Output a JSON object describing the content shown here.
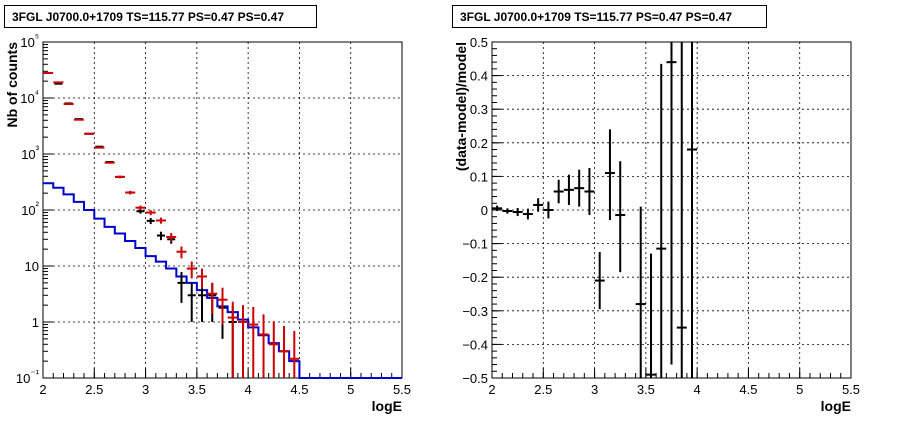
{
  "titles": {
    "left": "3FGL J0700.0+1709 TS=115.77 PS=0.47 PS=0.47",
    "right": "3FGL J0700.0+1709 TS=115.77 PS=0.47 PS=0.47"
  },
  "chart_data": [
    {
      "type": "scatter",
      "title": "3FGL J0700.0+1709 TS=115.77 PS=0.47 PS=0.47",
      "xlabel": "logE",
      "ylabel": "Nb of counts",
      "xlim": [
        2,
        5.5
      ],
      "ylim": [
        0.1,
        100000
      ],
      "yscale": "log",
      "grid": true,
      "x_ticks": [
        "2",
        "2.5",
        "3",
        "3.5",
        "4",
        "4.5",
        "5",
        "5.5"
      ],
      "y_ticks": [
        "10⁻¹",
        "1",
        "10",
        "10²",
        "10³",
        "10⁴",
        "10⁵"
      ],
      "bin_width": 0.1,
      "colors": {
        "data": "#000000",
        "model": "#cc0000",
        "background": "#0000cc"
      },
      "series": [
        {
          "x": [
            2.05,
            2.15,
            2.25,
            2.35,
            2.45,
            2.55,
            2.65,
            2.75,
            2.85,
            2.95,
            3.05,
            3.15,
            3.25,
            3.35,
            3.45,
            3.55,
            3.65,
            3.75,
            3.85,
            3.95
          ],
          "y": [
            28000,
            18000,
            8000,
            4200,
            2300,
            1350,
            720,
            390,
            205,
            95,
            64,
            35,
            30,
            5,
            3,
            3,
            3,
            1.8,
            1,
            1
          ],
          "err_low": [
            170,
            135,
            90,
            65,
            48,
            37,
            27,
            20,
            14,
            9,
            8,
            6,
            5,
            2.8,
            2,
            2,
            2,
            1.3,
            0.9,
            0.9
          ],
          "err_high": [
            170,
            135,
            90,
            65,
            48,
            37,
            27,
            20,
            14,
            9,
            8,
            6,
            5,
            2.8,
            2,
            2,
            2,
            1.3,
            0.9,
            0.9
          ]
        },
        {
          "x": [
            2.05,
            2.15,
            2.25,
            2.35,
            2.45,
            2.55,
            2.65,
            2.75,
            2.85,
            2.95,
            3.05,
            3.15,
            3.25,
            3.35,
            3.45,
            3.55,
            3.65,
            3.75,
            3.85,
            3.95,
            4.05,
            4.15,
            4.25,
            4.35,
            4.45
          ],
          "y": [
            28000,
            19000,
            7800,
            4100,
            2300,
            1300,
            700,
            390,
            205,
            110,
            90,
            65,
            33,
            18,
            9,
            6.5,
            3.2,
            2.5,
            1.2,
            1.0,
            0.9,
            0.6,
            0.4,
            0.3,
            0.22
          ],
          "err_low": [
            170,
            135,
            90,
            65,
            48,
            37,
            27,
            20,
            14,
            10,
            9.5,
            8,
            5.8,
            4.3,
            3,
            2.5,
            1.8,
            1.6,
            1.1,
            1.0,
            0.95,
            0.77,
            0.63,
            0.55,
            0.47
          ],
          "err_high": [
            170,
            135,
            90,
            65,
            48,
            37,
            27,
            20,
            14,
            10,
            9.5,
            8,
            5.8,
            4.3,
            3,
            2.5,
            1.8,
            1.6,
            1.1,
            1.0,
            0.95,
            0.77,
            0.63,
            0.55,
            0.47
          ]
        },
        {
          "bin_edges": [
            2.0,
            2.1,
            2.2,
            2.3,
            2.4,
            2.5,
            2.6,
            2.7,
            2.8,
            2.9,
            3.0,
            3.1,
            3.2,
            3.3,
            3.4,
            3.5,
            3.6,
            3.7,
            3.8,
            3.9,
            4.0,
            4.1,
            4.2,
            4.3,
            4.4,
            4.5,
            5.5
          ],
          "values": [
            300,
            250,
            190,
            140,
            100,
            70,
            50,
            38,
            28,
            21,
            15,
            12,
            9,
            6.5,
            5,
            3.7,
            2.7,
            1.9,
            1.5,
            1.1,
            0.8,
            0.58,
            0.42,
            0.3,
            0.2,
            0.1
          ]
        }
      ]
    },
    {
      "type": "scatter",
      "title": "3FGL J0700.0+1709 TS=115.77 PS=0.47 PS=0.47",
      "xlabel": "logE",
      "ylabel": "(data-model)/model",
      "xlim": [
        2,
        5.5
      ],
      "ylim": [
        -0.5,
        0.5
      ],
      "grid": true,
      "x_ticks": [
        "2",
        "2.5",
        "3",
        "3.5",
        "4",
        "4.5",
        "5",
        "5.5"
      ],
      "y_ticks": [
        "−0.5",
        "−0.4",
        "−0.3",
        "−0.2",
        "−0.1",
        "0",
        "0.1",
        "0.2",
        "0.3",
        "0.4",
        "0.5"
      ],
      "bin_width": 0.1,
      "series": [
        {
          "x": [
            2.05,
            2.15,
            2.25,
            2.35,
            2.45,
            2.55,
            2.65,
            2.75,
            2.85,
            2.95,
            3.05,
            3.15,
            3.25,
            3.45,
            3.55,
            3.65,
            3.75,
            3.85,
            3.95
          ],
          "y": [
            0.005,
            -0.003,
            -0.006,
            -0.012,
            0.015,
            0.0,
            0.055,
            0.06,
            0.065,
            0.055,
            -0.21,
            0.11,
            -0.015,
            -0.28,
            -0.49,
            -0.115,
            0.44,
            -0.35,
            0.18
          ],
          "err_low": [
            0.008,
            0.008,
            0.012,
            0.016,
            0.02,
            0.025,
            0.035,
            0.045,
            0.055,
            0.07,
            0.085,
            0.14,
            0.17,
            0.3,
            0.36,
            0.55,
            0.9,
            1.0,
            1.1
          ],
          "err_high": [
            0.008,
            0.008,
            0.012,
            0.016,
            0.02,
            0.025,
            0.035,
            0.045,
            0.055,
            0.07,
            0.085,
            0.13,
            0.16,
            0.29,
            0.36,
            0.55,
            0.9,
            1.0,
            1.1
          ]
        }
      ]
    }
  ]
}
